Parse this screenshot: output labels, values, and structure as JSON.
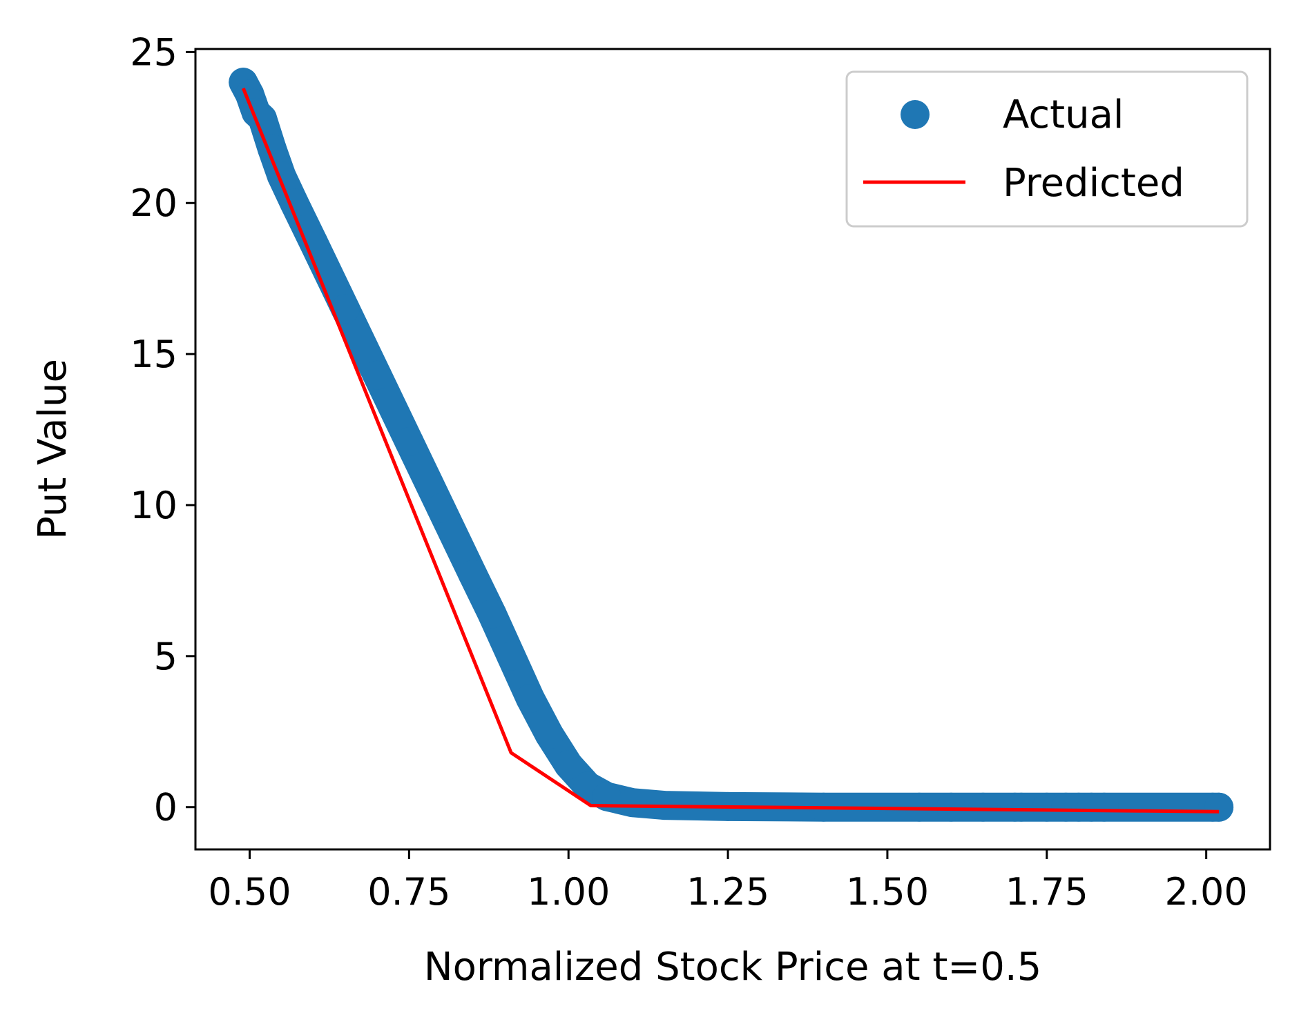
{
  "chart_data": {
    "type": "scatter",
    "title": "",
    "xlabel": "Normalized Stock Price at t=0.5",
    "ylabel": "Put Value",
    "xlim": [
      0.415,
      2.1
    ],
    "ylim": [
      -1.4,
      25.1
    ],
    "xticks": [
      0.5,
      0.75,
      1.0,
      1.25,
      1.5,
      1.75,
      2.0
    ],
    "xtick_labels": [
      "0.50",
      "0.75",
      "1.00",
      "1.25",
      "1.50",
      "1.75",
      "2.00"
    ],
    "yticks": [
      0,
      5,
      10,
      15,
      20,
      25
    ],
    "ytick_labels": [
      "0",
      "5",
      "10",
      "15",
      "20",
      "25"
    ],
    "grid": false,
    "legend_position": "top-right",
    "series": [
      {
        "name": "Actual",
        "kind": "scatter",
        "color": "#1f77b4",
        "x": [
          0.49,
          0.5,
          0.505,
          0.51,
          0.52,
          0.535,
          0.55,
          0.57,
          0.6,
          0.65,
          0.7,
          0.75,
          0.8,
          0.85,
          0.88,
          0.91,
          0.94,
          0.97,
          1.0,
          1.03,
          1.06,
          1.1,
          1.15,
          1.25,
          1.4,
          1.55,
          1.6,
          1.65,
          1.7,
          1.71,
          1.75,
          1.78,
          1.8,
          1.82,
          1.84,
          2.01,
          2.02
        ],
        "y": [
          24.0,
          23.6,
          23.3,
          23.0,
          22.8,
          21.8,
          20.9,
          20.0,
          18.7,
          16.5,
          14.3,
          12.1,
          9.9,
          7.7,
          6.4,
          5.0,
          3.6,
          2.4,
          1.4,
          0.7,
          0.35,
          0.15,
          0.06,
          0.02,
          0.0,
          0.0,
          0.0,
          0.0,
          0.0,
          0.0,
          0.0,
          0.0,
          0.0,
          0.0,
          0.0,
          0.0,
          0.0
        ]
      },
      {
        "name": "Predicted",
        "kind": "line",
        "color": "#ff0000",
        "x": [
          0.49,
          0.91,
          1.035,
          2.02
        ],
        "y": [
          23.8,
          1.8,
          0.05,
          -0.15
        ]
      }
    ]
  }
}
